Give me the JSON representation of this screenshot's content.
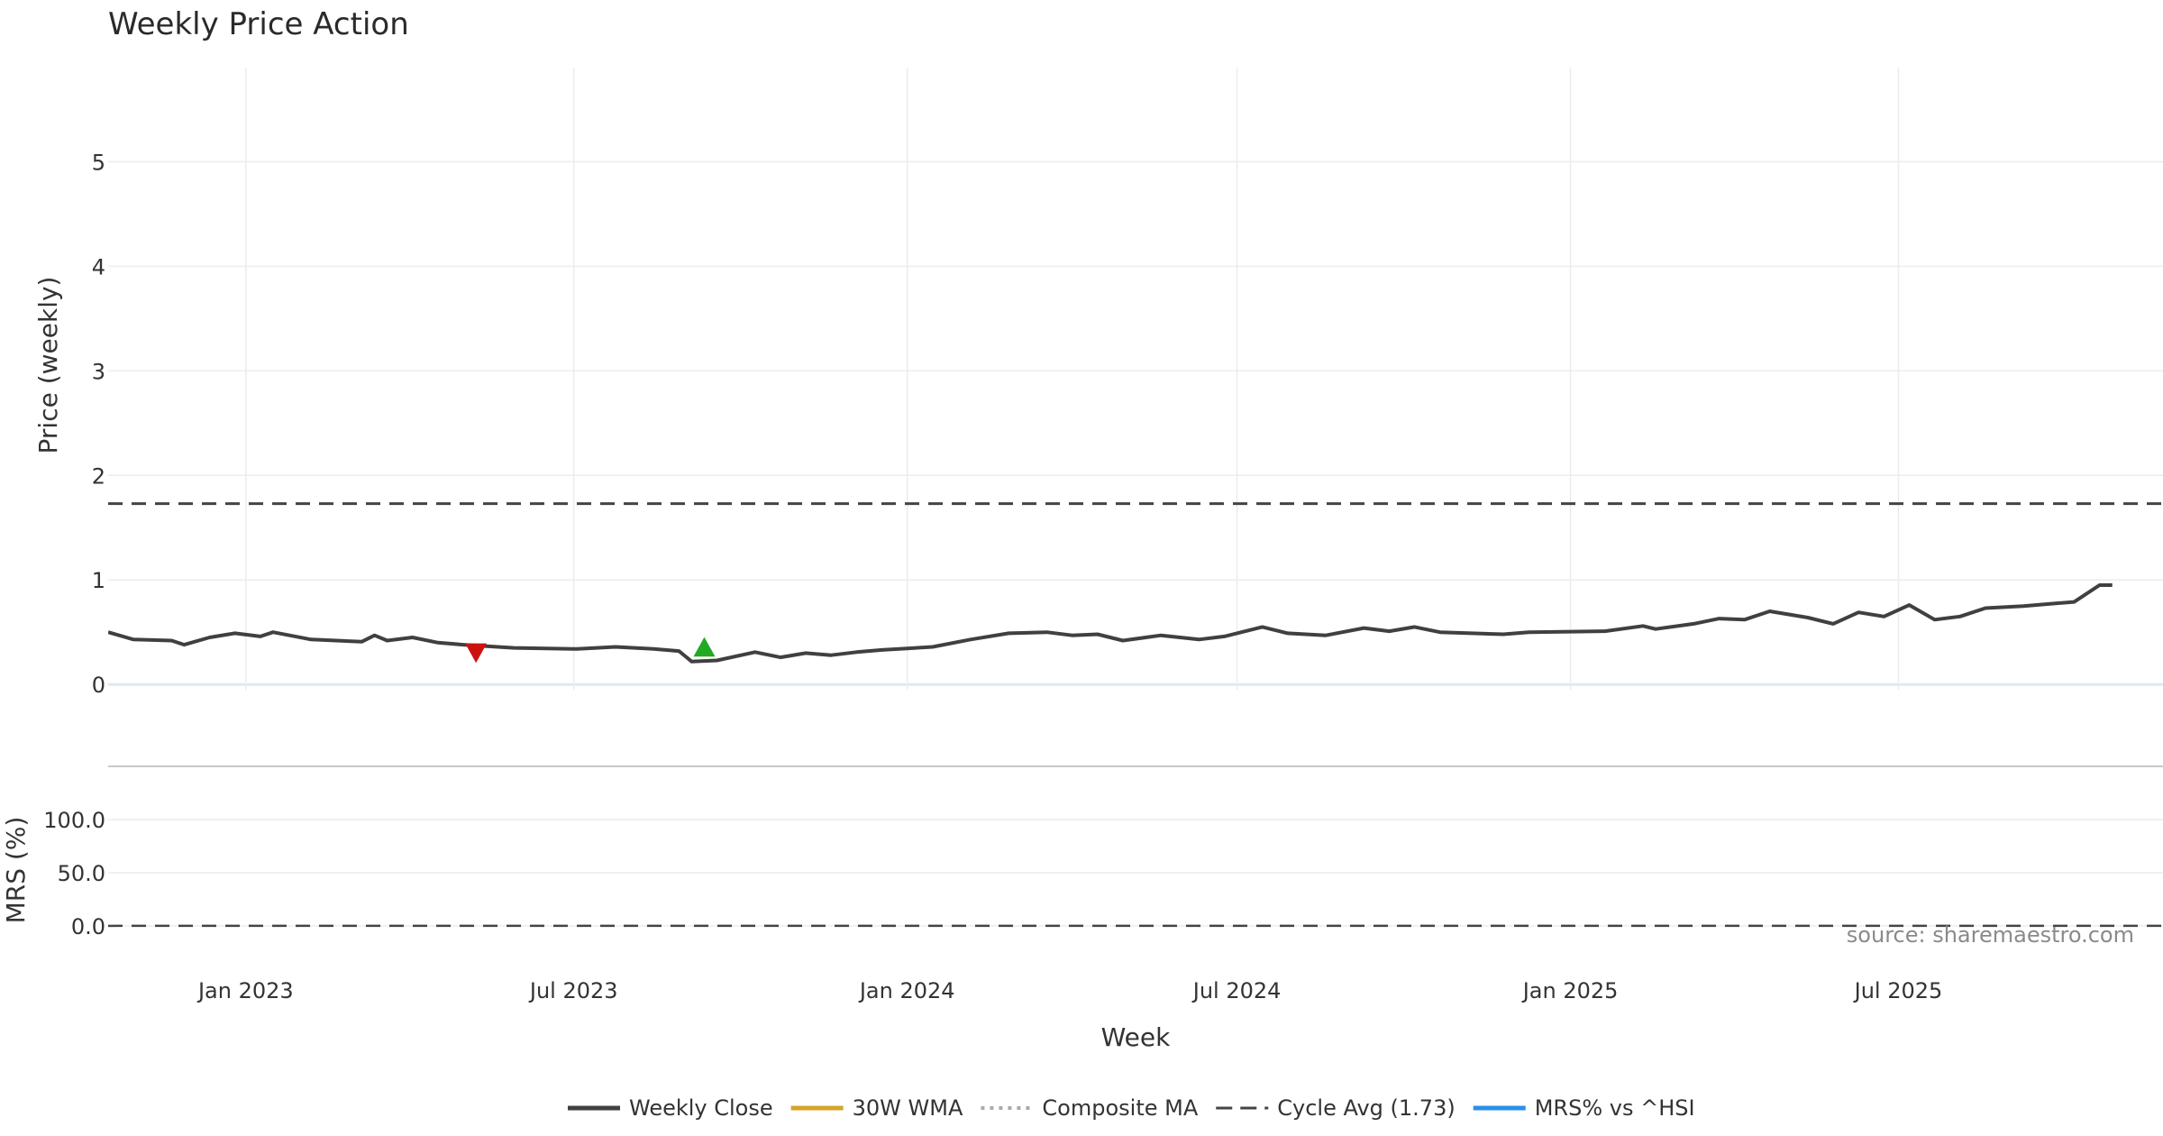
{
  "chart_data": [
    {
      "type": "line",
      "title": "Weekly Price Action",
      "ylabel": "Price (weekly)",
      "ylim": [
        -0.05,
        5.9
      ],
      "yticks": [
        0,
        1,
        2,
        3,
        4,
        5
      ],
      "x_range": [
        "2022-10-17",
        "2025-11-24"
      ],
      "x_ticks": [
        {
          "date": "2023-01-01",
          "label": "Jan 2023"
        },
        {
          "date": "2023-07-01",
          "label": "Jul 2023"
        },
        {
          "date": "2024-01-01",
          "label": "Jan 2024"
        },
        {
          "date": "2024-07-01",
          "label": "Jul 2024"
        },
        {
          "date": "2025-01-01",
          "label": "Jan 2025"
        },
        {
          "date": "2025-07-01",
          "label": "Jul 2025"
        }
      ],
      "grid": true,
      "hline": {
        "name": "Cycle Avg (1.73)",
        "value": 1.73,
        "color": "#444444",
        "style": "dashed"
      },
      "markers": [
        {
          "type": "sell",
          "date": "2023-05-08",
          "value": 0.3,
          "color": "#cc1111"
        },
        {
          "type": "buy",
          "date": "2023-09-11",
          "value": 0.36,
          "color": "#22aa22"
        }
      ],
      "series": [
        {
          "name": "Weekly Close",
          "color": "#404040",
          "style": "solid",
          "points": [
            [
              "2022-10-17",
              0.5
            ],
            [
              "2022-10-31",
              0.43
            ],
            [
              "2022-11-21",
              0.42
            ],
            [
              "2022-11-28",
              0.38
            ],
            [
              "2022-12-12",
              0.45
            ],
            [
              "2022-12-26",
              0.49
            ],
            [
              "2023-01-09",
              0.46
            ],
            [
              "2023-01-16",
              0.5
            ],
            [
              "2023-02-06",
              0.43
            ],
            [
              "2023-02-20",
              0.42
            ],
            [
              "2023-03-06",
              0.41
            ],
            [
              "2023-03-13",
              0.47
            ],
            [
              "2023-03-20",
              0.42
            ],
            [
              "2023-04-03",
              0.45
            ],
            [
              "2023-04-17",
              0.4
            ],
            [
              "2023-05-01",
              0.38
            ],
            [
              "2023-05-29",
              0.35
            ],
            [
              "2023-07-03",
              0.34
            ],
            [
              "2023-07-24",
              0.36
            ],
            [
              "2023-08-14",
              0.34
            ],
            [
              "2023-08-28",
              0.32
            ],
            [
              "2023-09-04",
              0.22
            ],
            [
              "2023-09-18",
              0.23
            ],
            [
              "2023-10-09",
              0.31
            ],
            [
              "2023-10-23",
              0.26
            ],
            [
              "2023-11-06",
              0.3
            ],
            [
              "2023-11-20",
              0.28
            ],
            [
              "2023-12-04",
              0.31
            ],
            [
              "2023-12-18",
              0.33
            ],
            [
              "2024-01-15",
              0.36
            ],
            [
              "2024-02-05",
              0.43
            ],
            [
              "2024-02-26",
              0.49
            ],
            [
              "2024-03-18",
              0.5
            ],
            [
              "2024-04-01",
              0.47
            ],
            [
              "2024-04-15",
              0.48
            ],
            [
              "2024-04-29",
              0.42
            ],
            [
              "2024-05-20",
              0.47
            ],
            [
              "2024-06-10",
              0.43
            ],
            [
              "2024-06-24",
              0.46
            ],
            [
              "2024-07-15",
              0.55
            ],
            [
              "2024-07-29",
              0.49
            ],
            [
              "2024-08-19",
              0.47
            ],
            [
              "2024-09-09",
              0.54
            ],
            [
              "2024-09-23",
              0.51
            ],
            [
              "2024-10-07",
              0.55
            ],
            [
              "2024-10-21",
              0.5
            ],
            [
              "2024-11-25",
              0.48
            ],
            [
              "2024-12-09",
              0.5
            ],
            [
              "2025-01-20",
              0.51
            ],
            [
              "2025-02-10",
              0.56
            ],
            [
              "2025-02-17",
              0.53
            ],
            [
              "2025-03-10",
              0.58
            ],
            [
              "2025-03-24",
              0.63
            ],
            [
              "2025-04-07",
              0.62
            ],
            [
              "2025-04-21",
              0.7
            ],
            [
              "2025-05-12",
              0.64
            ],
            [
              "2025-05-26",
              0.58
            ],
            [
              "2025-06-09",
              0.69
            ],
            [
              "2025-06-23",
              0.65
            ],
            [
              "2025-07-07",
              0.76
            ],
            [
              "2025-07-21",
              0.62
            ],
            [
              "2025-08-04",
              0.65
            ],
            [
              "2025-08-18",
              0.73
            ],
            [
              "2025-09-08",
              0.75
            ],
            [
              "2025-09-22",
              0.77
            ],
            [
              "2025-10-06",
              0.79
            ],
            [
              "2025-10-20",
              0.95
            ],
            [
              "2025-10-27",
              0.95
            ]
          ]
        }
      ]
    },
    {
      "type": "line",
      "ylabel": "MRS (%)",
      "ylim": [
        -45,
        150
      ],
      "yticks": [
        {
          "value": 0,
          "label": "0.0"
        },
        {
          "value": 50,
          "label": "50.0"
        },
        {
          "value": 100,
          "label": "100.0"
        }
      ],
      "xlabel": "Week",
      "grid": true,
      "zero_line": {
        "value": 0,
        "color": "#444444",
        "style": "dashed"
      },
      "series": [
        {
          "name": "MRS% vs ^HSI",
          "color": "#2b8fe8",
          "style": "solid"
        }
      ]
    }
  ],
  "legend": {
    "placement": "bottom",
    "items": [
      {
        "label": "Weekly Close",
        "color": "#404040",
        "style": "solid"
      },
      {
        "label": "30W WMA",
        "color": "#d4a52a",
        "style": "solid"
      },
      {
        "label": "Composite MA",
        "color": "#aaaaaa",
        "style": "dotted"
      },
      {
        "label": "Cycle Avg (1.73)",
        "color": "#444444",
        "style": "dashed"
      },
      {
        "label": "MRS% vs ^HSI",
        "color": "#2b8fe8",
        "style": "solid"
      }
    ]
  },
  "source_text": "source: sharemaestro.com"
}
